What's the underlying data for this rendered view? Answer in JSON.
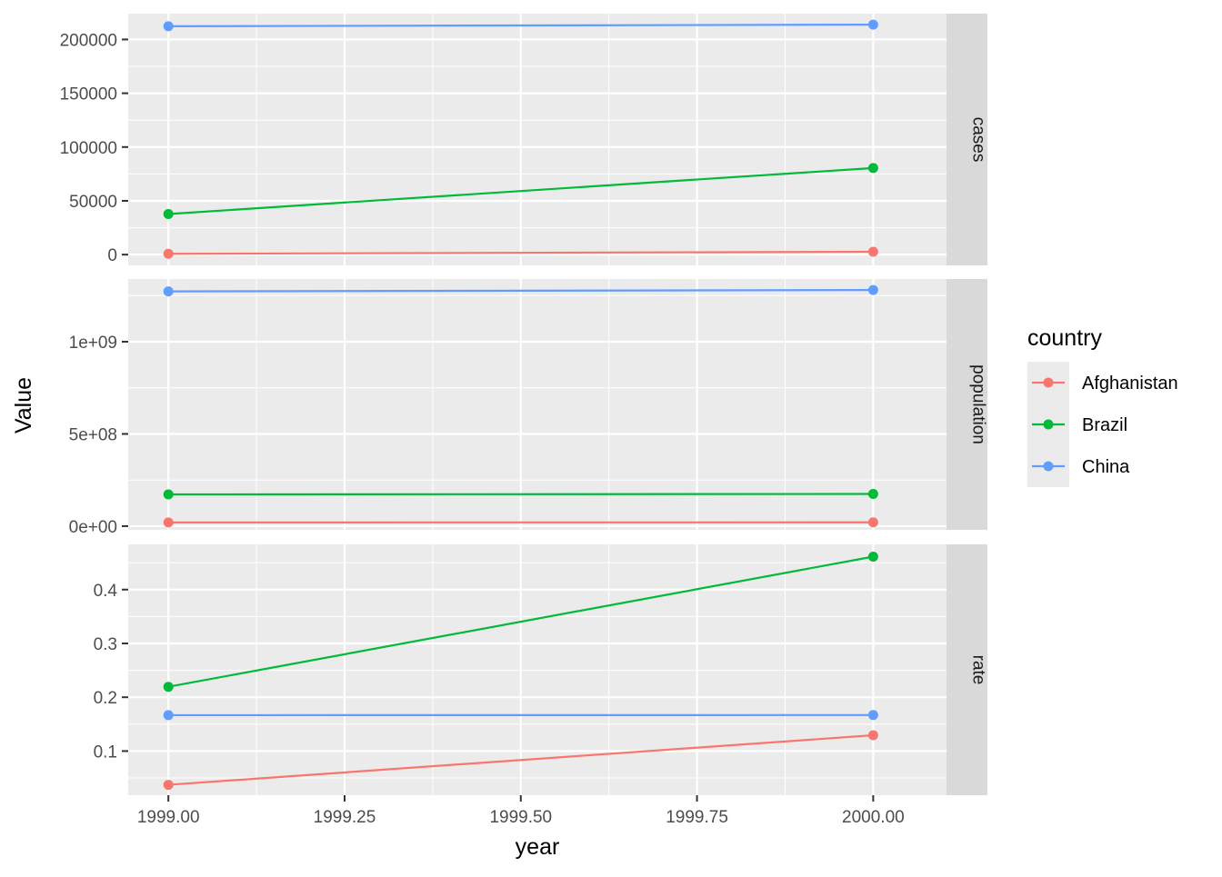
{
  "chart_data": {
    "type": "line",
    "xlabel": "year",
    "ylabel": "Value",
    "x": [
      1999,
      2000
    ],
    "xlim": [
      1998.943,
      2000.104
    ],
    "x_ticks": [
      1999.0,
      1999.25,
      1999.5,
      1999.75,
      2000.0
    ],
    "x_tick_labels": [
      "1999.00",
      "1999.25",
      "1999.50",
      "1999.75",
      "2000.00"
    ],
    "legend": {
      "title": "country",
      "placement": "right",
      "entries": [
        "Afghanistan",
        "Brazil",
        "China"
      ]
    },
    "colors": {
      "Afghanistan": "#F8766D",
      "Brazil": "#00BA38",
      "China": "#619CFF",
      "panel_bg": "#EBEBEB",
      "strip_bg": "#D9D9D9",
      "grid": "#FFFFFF"
    },
    "grid": true,
    "facets": [
      {
        "label": "cases",
        "ylim": [
          -10000,
          224000
        ],
        "y_ticks": [
          0,
          50000,
          100000,
          150000,
          200000
        ],
        "y_tick_labels": [
          "0",
          "50000",
          "100000",
          "150000",
          "200000"
        ],
        "series": [
          {
            "name": "Afghanistan",
            "values": [
              745,
              2666
            ]
          },
          {
            "name": "Brazil",
            "values": [
              37737,
              80488
            ]
          },
          {
            "name": "China",
            "values": [
              212258,
              213766
            ]
          }
        ]
      },
      {
        "label": "population",
        "ylim": [
          -20000000,
          1340000000
        ],
        "y_ticks": [
          0,
          500000000,
          1000000000
        ],
        "y_tick_labels": [
          "0e+00",
          "5e+08",
          "1e+09"
        ],
        "series": [
          {
            "name": "Afghanistan",
            "values": [
              19987071,
              20595360
            ]
          },
          {
            "name": "Brazil",
            "values": [
              172006362,
              174504898
            ]
          },
          {
            "name": "China",
            "values": [
              1272915272,
              1280428583
            ]
          }
        ]
      },
      {
        "label": "rate",
        "ylim": [
          0.018,
          0.484
        ],
        "y_ticks": [
          0.1,
          0.2,
          0.3,
          0.4
        ],
        "y_tick_labels": [
          "0.1",
          "0.2",
          "0.3",
          "0.4"
        ],
        "series": [
          {
            "name": "Afghanistan",
            "values": [
              0.0373,
              0.1294
            ]
          },
          {
            "name": "Brazil",
            "values": [
              0.2194,
              0.4612
            ]
          },
          {
            "name": "China",
            "values": [
              0.1667,
              0.1669
            ]
          }
        ]
      }
    ]
  }
}
